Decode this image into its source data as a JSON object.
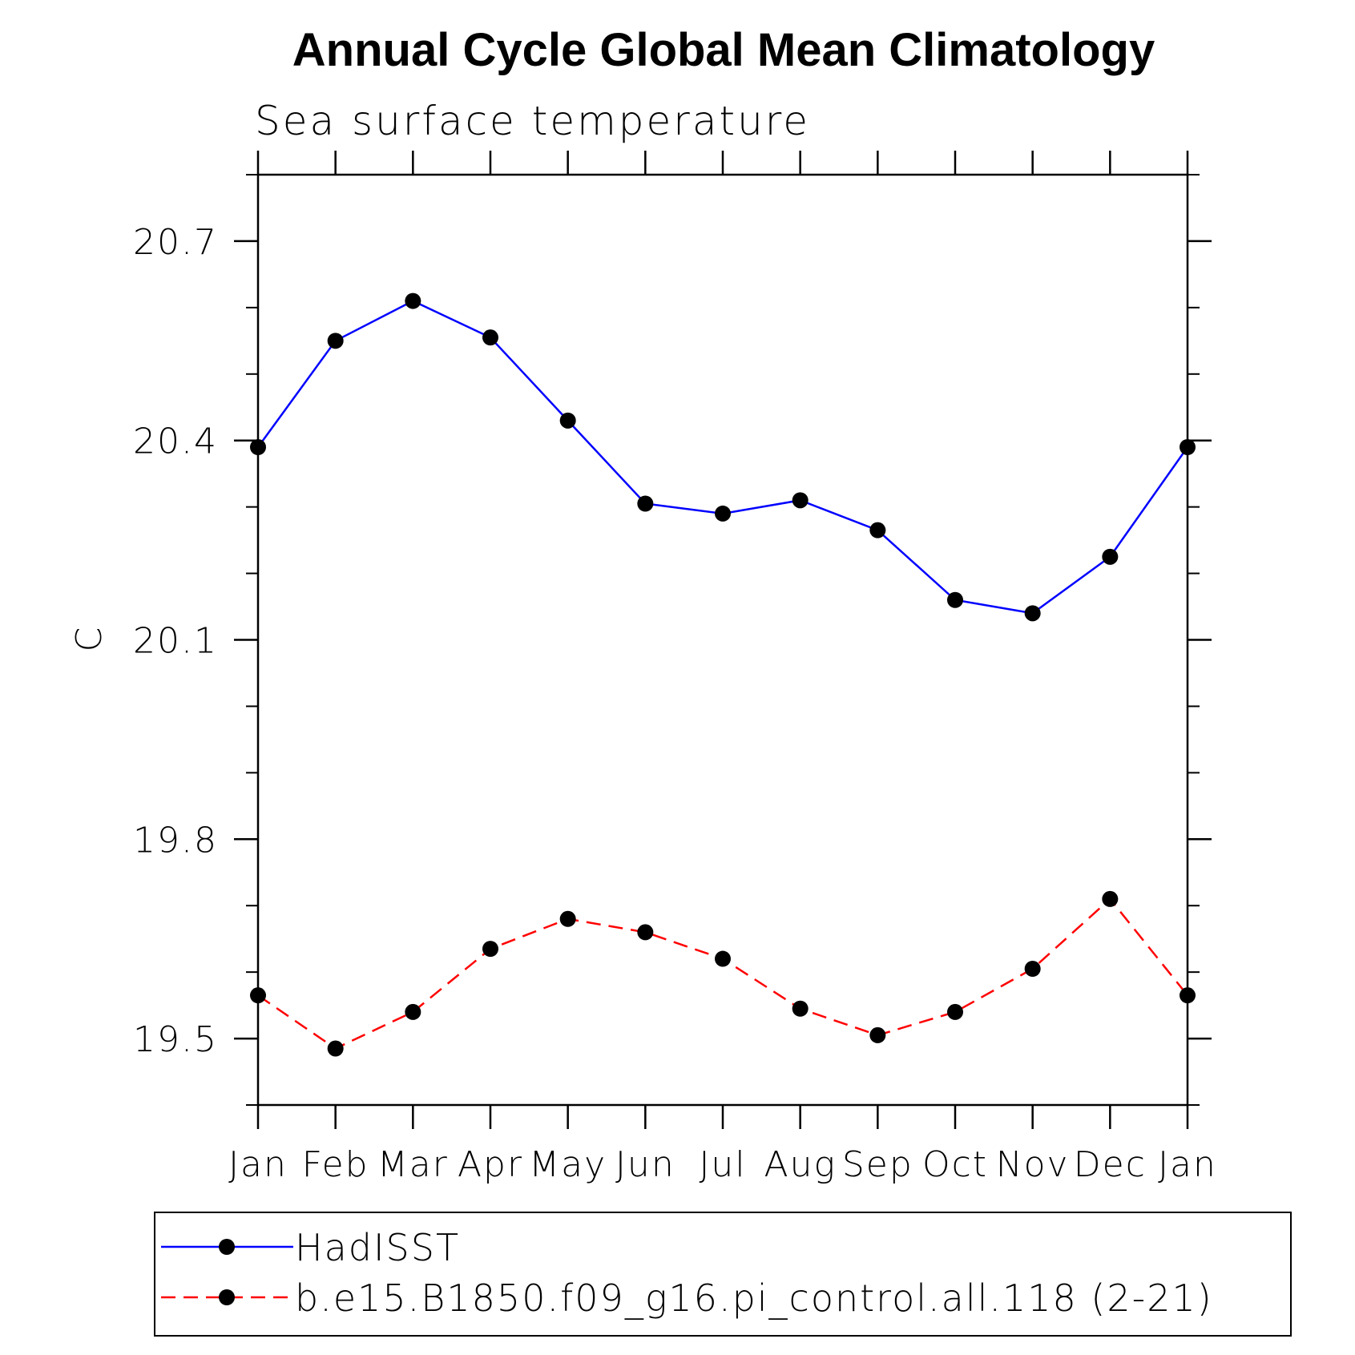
{
  "chart_data": {
    "type": "line",
    "title": "Annual Cycle Global Mean Climatology",
    "subtitle": "Sea surface temperature",
    "ylabel": "C",
    "xlabel": "",
    "categories": [
      "Jan",
      "Feb",
      "Mar",
      "Apr",
      "May",
      "Jun",
      "Jul",
      "Aug",
      "Sep",
      "Oct",
      "Nov",
      "Dec",
      "Jan"
    ],
    "ylim": [
      19.4,
      20.8
    ],
    "yticks": [
      "20.7",
      "20.4",
      "20.1",
      "19.8",
      "19.5"
    ],
    "grid": false,
    "legend_position": "bottom",
    "series": [
      {
        "name": "HadISST",
        "color": "#0000ff",
        "dash": "solid",
        "marker": "filled-circle",
        "values": [
          20.39,
          20.55,
          20.61,
          20.555,
          20.43,
          20.305,
          20.29,
          20.31,
          20.265,
          20.16,
          20.14,
          20.225,
          20.39
        ]
      },
      {
        "name": "b.e15.B1850.f09_g16.pi_control.all.118 (2-21)",
        "color": "#ff0000",
        "dash": "dashed",
        "marker": "filled-circle",
        "values": [
          19.565,
          19.485,
          19.54,
          19.635,
          19.68,
          19.66,
          19.62,
          19.545,
          19.505,
          19.54,
          19.605,
          19.71,
          19.565
        ]
      }
    ]
  }
}
